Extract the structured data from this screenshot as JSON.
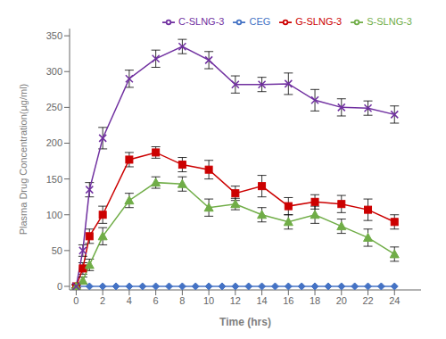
{
  "chart_data": {
    "type": "line",
    "xlabel": "Time (hrs)",
    "ylabel": "Plasma Drug Concentration(µg/ml)",
    "series": [
      {
        "name": "CEG",
        "color": "#4472C4",
        "marker": "diamond",
        "x": [
          0,
          1,
          2,
          3,
          4,
          5,
          6,
          7,
          8,
          9,
          10,
          11,
          12,
          13,
          14,
          15,
          16,
          17,
          18,
          19,
          20,
          21,
          22,
          23,
          24
        ],
        "values": [
          0,
          0,
          0,
          0,
          0,
          0,
          0,
          0,
          0,
          0,
          0,
          0,
          0,
          0,
          0,
          0,
          0,
          0,
          0,
          0,
          0,
          0,
          0,
          0,
          0
        ],
        "error": [
          0,
          0,
          0,
          0,
          0,
          0,
          0,
          0,
          0,
          0,
          0,
          0,
          0,
          0,
          0,
          0,
          0,
          0,
          0,
          0,
          0,
          0,
          0,
          0,
          0
        ]
      },
      {
        "name": "G-SLNG-3",
        "color": "#CC0000",
        "marker": "square",
        "x": [
          0,
          0.5,
          1,
          2,
          4,
          6,
          8,
          10,
          12,
          14,
          16,
          18,
          20,
          22,
          24
        ],
        "values": [
          0,
          25,
          70,
          100,
          177,
          187,
          170,
          163,
          130,
          140,
          112,
          118,
          115,
          107,
          90
        ],
        "error": [
          2,
          8,
          10,
          12,
          10,
          8,
          10,
          13,
          10,
          15,
          12,
          10,
          12,
          15,
          10
        ]
      },
      {
        "name": "S-SLNG-3",
        "color": "#70AD47",
        "marker": "triangle",
        "x": [
          0,
          0.5,
          1,
          2,
          4,
          6,
          8,
          10,
          12,
          14,
          16,
          18,
          20,
          22,
          24
        ],
        "values": [
          0,
          8,
          30,
          70,
          120,
          145,
          143,
          110,
          115,
          100,
          90,
          100,
          84,
          68,
          45
        ],
        "error": [
          2,
          5,
          8,
          12,
          10,
          8,
          10,
          12,
          8,
          10,
          10,
          12,
          10,
          12,
          10
        ]
      },
      {
        "name": "C-SLNG-3",
        "color": "#7030A0",
        "marker": "x",
        "x": [
          0,
          0.5,
          1,
          2,
          4,
          6,
          8,
          10,
          12,
          14,
          16,
          18,
          20,
          22,
          24
        ],
        "values": [
          0,
          50,
          135,
          207,
          290,
          318,
          335,
          316,
          282,
          282,
          283,
          260,
          250,
          249,
          240
        ],
        "error": [
          3,
          8,
          10,
          15,
          12,
          12,
          10,
          12,
          12,
          10,
          15,
          15,
          12,
          10,
          12
        ]
      }
    ],
    "xlim": [
      -0.5,
      26
    ],
    "ylim": [
      -5,
      360
    ],
    "xticks": [
      0,
      2,
      4,
      6,
      8,
      10,
      12,
      14,
      16,
      18,
      20,
      22,
      24
    ],
    "yticks": [
      0,
      50,
      100,
      150,
      200,
      250,
      300,
      350
    ],
    "grid": false,
    "legend": "upper right"
  }
}
